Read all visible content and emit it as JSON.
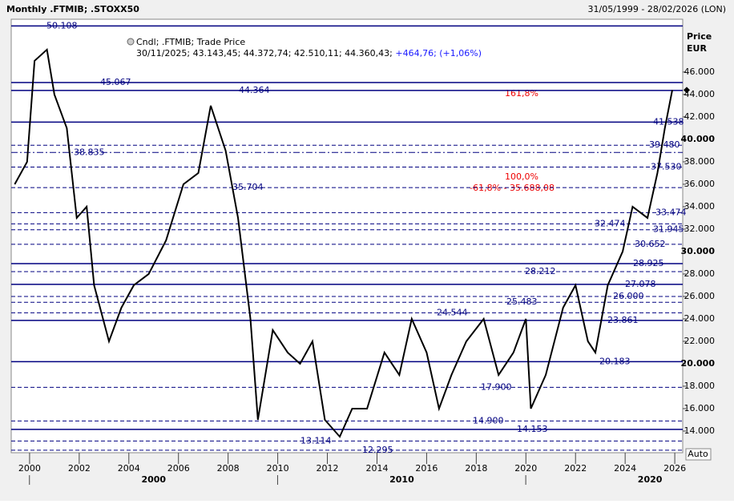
{
  "header": {
    "title": "Monthly .FTMIB; .STOXX50",
    "range": "31/05/1999 - 28/02/2026 (LON)"
  },
  "legend": {
    "line1": "Cndl; .FTMIB; Trade Price",
    "line2": "30/11/2025; 43.143,45; 44.372,74; 42.510,11; 44.360,43;",
    "change": "+464,76; (+1,06%)"
  },
  "axis_title": {
    "line1": "Price",
    "line2": "EUR"
  },
  "scale_button": "Auto",
  "annotations": [
    "161,8%",
    "100,0%",
    "-61,8% - 35.688,08"
  ],
  "chart_data": {
    "type": "line",
    "color": "#000000",
    "x": [
      1999.4,
      1999.9,
      2000.2,
      2000.7,
      2001.0,
      2001.5,
      2001.9,
      2002.3,
      2002.6,
      2003.2,
      2003.7,
      2004.2,
      2004.8,
      2005.5,
      2006.2,
      2006.8,
      2007.3,
      2007.9,
      2008.4,
      2008.9,
      2009.2,
      2009.8,
      2010.4,
      2010.9,
      2011.4,
      2011.9,
      2012.5,
      2013.0,
      2013.6,
      2014.3,
      2014.9,
      2015.4,
      2016.0,
      2016.5,
      2017.0,
      2017.6,
      2018.3,
      2018.9,
      2019.5,
      2020.0,
      2020.2,
      2020.8,
      2021.5,
      2022.0,
      2022.5,
      2022.8,
      2023.3,
      2023.9,
      2024.3,
      2024.9,
      2025.3,
      2025.6,
      2025.9
    ],
    "values": [
      36,
      38,
      47,
      48,
      44,
      41,
      33,
      34,
      27,
      22,
      25,
      27,
      28,
      31,
      36,
      37,
      43,
      39,
      33,
      24,
      15,
      23,
      21,
      20,
      22,
      15,
      13.5,
      16,
      16,
      21,
      19,
      24,
      21,
      16,
      19,
      22,
      24,
      19,
      21,
      24,
      16,
      19,
      25,
      27,
      22,
      21,
      27,
      30,
      34,
      33,
      37,
      41,
      44.4
    ],
    "xlim": [
      1999.26,
      2026.32
    ],
    "ylim": [
      12.07,
      50.71
    ],
    "xticks": [
      2000,
      2002,
      2004,
      2006,
      2008,
      2010,
      2012,
      2014,
      2016,
      2018,
      2020,
      2022,
      2024,
      2026
    ],
    "decade_ticks": [
      {
        "value": 2005,
        "label": "2000"
      },
      {
        "value": 2015,
        "label": "2010"
      },
      {
        "value": 2025,
        "label": "2020"
      }
    ],
    "yticks": [
      {
        "value": 14,
        "label": "14.000"
      },
      {
        "value": 16,
        "label": "16.000"
      },
      {
        "value": 18,
        "label": "18.000"
      },
      {
        "value": 20,
        "label": "20.000"
      },
      {
        "value": 22,
        "label": "22.000"
      },
      {
        "value": 24,
        "label": "24.000"
      },
      {
        "value": 26,
        "label": "26.000"
      },
      {
        "value": 28,
        "label": "28.000"
      },
      {
        "value": 30,
        "label": "30.000"
      },
      {
        "value": 32,
        "label": "32.000"
      },
      {
        "value": 34,
        "label": "34.000"
      },
      {
        "value": 36,
        "label": "36.000"
      },
      {
        "value": 38,
        "label": "38.000"
      },
      {
        "value": 40,
        "label": "40.000"
      },
      {
        "value": 42,
        "label": "42.000"
      },
      {
        "value": 44,
        "label": "44.000"
      },
      {
        "value": 46,
        "label": "46.000"
      }
    ],
    "levels": [
      {
        "value": 50.108,
        "label": "50.108",
        "style": "solid"
      },
      {
        "value": 45.067,
        "label": "45.067",
        "style": "solid"
      },
      {
        "value": 44.364,
        "label": "44.364",
        "style": "solid"
      },
      {
        "value": 41.538,
        "label": "41.538",
        "style": "solid"
      },
      {
        "value": 39.48,
        "label": "39.480",
        "style": "dashed"
      },
      {
        "value": 38.835,
        "label": "38.835",
        "style": "dashdot"
      },
      {
        "value": 37.53,
        "label": "37.530",
        "style": "dashed"
      },
      {
        "value": 35.704,
        "label": "35.704",
        "style": "dashed"
      },
      {
        "value": 33.474,
        "label": "33.474",
        "style": "dashed"
      },
      {
        "value": 32.474,
        "label": "32.474",
        "style": "dashed"
      },
      {
        "value": 31.945,
        "label": "31.945",
        "style": "dashed"
      },
      {
        "value": 30.652,
        "label": "30.652",
        "style": "dashed"
      },
      {
        "value": 28.925,
        "label": "28.925",
        "style": "solid"
      },
      {
        "value": 28.212,
        "label": "28.212",
        "style": "dashed"
      },
      {
        "value": 27.078,
        "label": "27.078",
        "style": "solid"
      },
      {
        "value": 26,
        "label": "26.000",
        "style": "dashed"
      },
      {
        "value": 25.483,
        "label": "25.483",
        "style": "dashed"
      },
      {
        "value": 24.544,
        "label": "24.544",
        "style": "dashed"
      },
      {
        "value": 23.861,
        "label": "23.861",
        "style": "solid"
      },
      {
        "value": 20.183,
        "label": "20.183",
        "style": "solid"
      },
      {
        "value": 17.9,
        "label": "17.900",
        "style": "dashed"
      },
      {
        "value": 14.9,
        "label": "14.900",
        "style": "dashed"
      },
      {
        "value": 14.153,
        "label": "14.153",
        "style": "solid"
      },
      {
        "value": 13.114,
        "label": "13.114",
        "style": "dashed"
      },
      {
        "value": 12.295,
        "label": "12.295",
        "style": "dashed"
      }
    ]
  }
}
